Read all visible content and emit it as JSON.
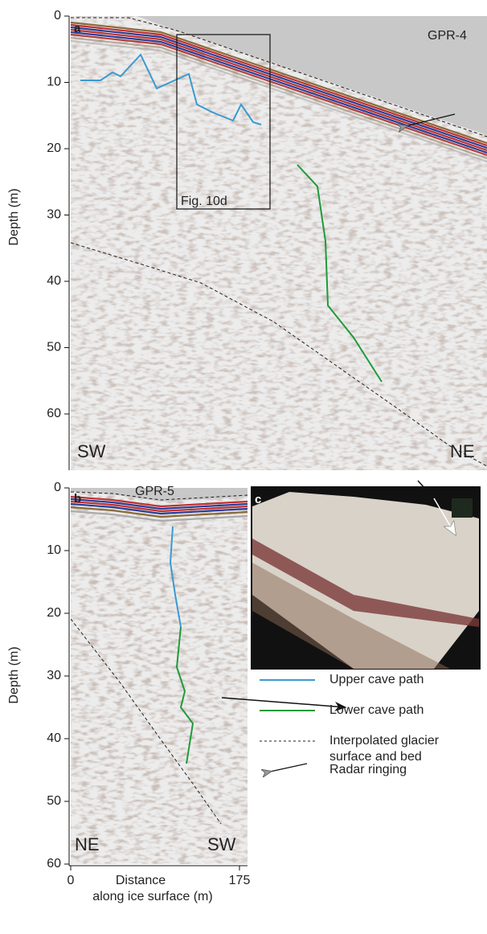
{
  "panel_a": {
    "label": "a",
    "profile": "GPR-4",
    "inset_label": "Fig. 10d",
    "left_end": "SW",
    "right_end": "NE",
    "y_axis_label": "Depth (m)",
    "yticks": [
      0,
      10,
      20,
      30,
      40,
      50,
      60
    ]
  },
  "panel_b": {
    "label": "b",
    "profile": "GPR-5",
    "left_end": "NE",
    "right_end": "SW",
    "y_axis_label": "Depth (m)",
    "yticks": [
      0,
      10,
      20,
      30,
      40,
      50,
      60
    ],
    "xticks": [
      0,
      175
    ],
    "x_axis_label_line1": "Distance",
    "x_axis_label_line2": "along ice surface (m)"
  },
  "panel_c": {
    "label": "c"
  },
  "legend": {
    "upper": "Upper cave path",
    "lower": "Lower cave path",
    "surface_line1": "Interpolated glacier",
    "surface_line2": "surface and bed",
    "ringing": "Radar ringing"
  }
}
